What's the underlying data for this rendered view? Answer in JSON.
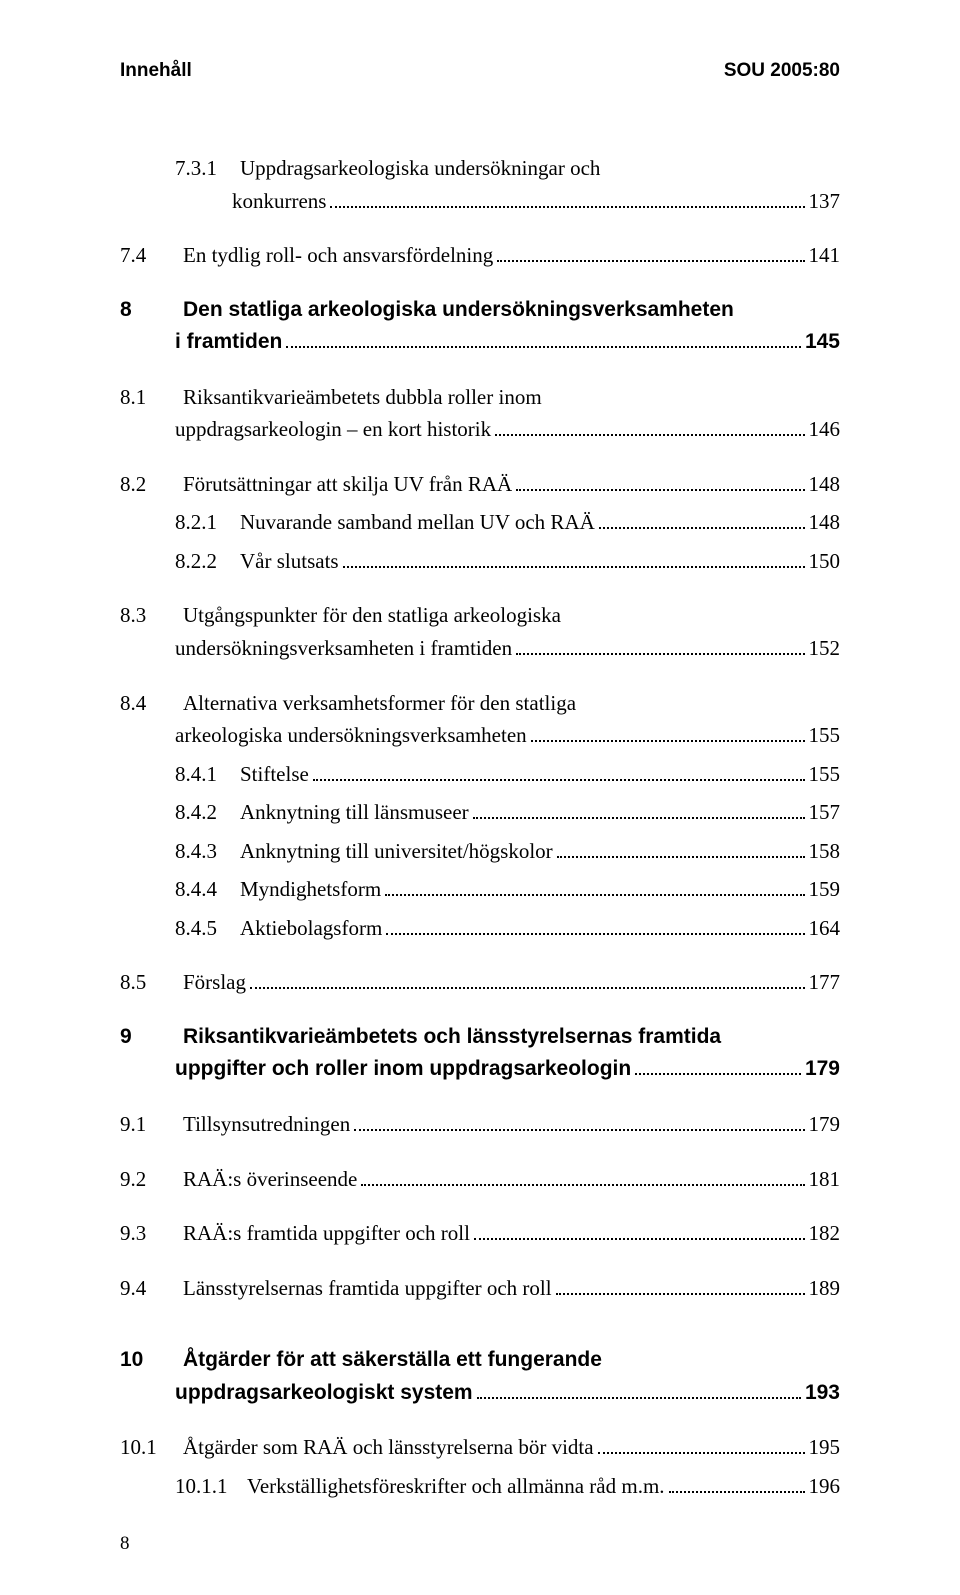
{
  "header": {
    "left": "Innehåll",
    "right": "SOU 2005:80"
  },
  "footer": {
    "page_number": "8"
  },
  "entries": [
    {
      "num": "7.3.1",
      "text_lines": [
        "Uppdragsarkeologiska undersökningar och",
        "konkurrens"
      ],
      "page": "137",
      "level": "sub",
      "bold": false,
      "gap": "none"
    },
    {
      "num": "7.4",
      "text_lines": [
        "En tydlig roll- och ansvarsfördelning"
      ],
      "page": "141",
      "level": "sec",
      "bold": false,
      "gap": "md"
    },
    {
      "num": "8",
      "text_lines": [
        "Den statliga arkeologiska undersökningsverksamheten",
        "i framtiden"
      ],
      "page": "145",
      "level": "ch",
      "bold": true,
      "gap": "md"
    },
    {
      "num": "8.1",
      "text_lines": [
        "Riksantikvarieämbetets dubbla roller inom",
        "uppdragsarkeologin – en kort historik"
      ],
      "page": "146",
      "level": "sec",
      "bold": false,
      "gap": "md"
    },
    {
      "num": "8.2",
      "text_lines": [
        "Förutsättningar att skilja UV från RAÄ"
      ],
      "page": "148",
      "level": "sec",
      "bold": false,
      "gap": "md"
    },
    {
      "num": "8.2.1",
      "text_lines": [
        "Nuvarande samband mellan UV och RAÄ"
      ],
      "page": "148",
      "level": "sub",
      "bold": false,
      "gap": "sm"
    },
    {
      "num": "8.2.2",
      "text_lines": [
        "Vår slutsats"
      ],
      "page": "150",
      "level": "sub",
      "bold": false,
      "gap": "sm"
    },
    {
      "num": "8.3",
      "text_lines": [
        "Utgångspunkter för den statliga arkeologiska",
        "undersökningsverksamheten i framtiden"
      ],
      "page": "152",
      "level": "sec",
      "bold": false,
      "gap": "md"
    },
    {
      "num": "8.4",
      "text_lines": [
        "Alternativa verksamhetsformer för den statliga",
        "arkeologiska undersökningsverksamheten"
      ],
      "page": "155",
      "level": "sec",
      "bold": false,
      "gap": "md"
    },
    {
      "num": "8.4.1",
      "text_lines": [
        "Stiftelse"
      ],
      "page": "155",
      "level": "sub",
      "bold": false,
      "gap": "sm"
    },
    {
      "num": "8.4.2",
      "text_lines": [
        "Anknytning till länsmuseer"
      ],
      "page": "157",
      "level": "sub",
      "bold": false,
      "gap": "sm"
    },
    {
      "num": "8.4.3",
      "text_lines": [
        "Anknytning till universitet/högskolor"
      ],
      "page": "158",
      "level": "sub",
      "bold": false,
      "gap": "sm"
    },
    {
      "num": "8.4.4",
      "text_lines": [
        "Myndighetsform"
      ],
      "page": "159",
      "level": "sub",
      "bold": false,
      "gap": "sm"
    },
    {
      "num": "8.4.5",
      "text_lines": [
        "Aktiebolagsform"
      ],
      "page": "164",
      "level": "sub",
      "bold": false,
      "gap": "sm"
    },
    {
      "num": "8.5",
      "text_lines": [
        "Förslag"
      ],
      "page": "177",
      "level": "sec",
      "bold": false,
      "gap": "md"
    },
    {
      "num": "9",
      "text_lines": [
        "Riksantikvarieämbetets och länsstyrelsernas framtida",
        "uppgifter och roller inom uppdragsarkeologin"
      ],
      "page": "179",
      "level": "ch",
      "bold": true,
      "gap": "md"
    },
    {
      "num": "9.1",
      "text_lines": [
        "Tillsynsutredningen"
      ],
      "page": "179",
      "level": "sec",
      "bold": false,
      "gap": "md"
    },
    {
      "num": "9.2",
      "text_lines": [
        "RAÄ:s överinseende"
      ],
      "page": "181",
      "level": "sec",
      "bold": false,
      "gap": "md"
    },
    {
      "num": "9.3",
      "text_lines": [
        "RAÄ:s framtida uppgifter och roll"
      ],
      "page": "182",
      "level": "sec",
      "bold": false,
      "gap": "md"
    },
    {
      "num": "9.4",
      "text_lines": [
        "Länsstyrelsernas framtida uppgifter och roll"
      ],
      "page": "189",
      "level": "sec",
      "bold": false,
      "gap": "md"
    },
    {
      "num": "10",
      "text_lines": [
        "Åtgärder för att säkerställa ett fungerande",
        "uppdragsarkeologiskt system"
      ],
      "page": "193",
      "level": "ch",
      "bold": true,
      "gap": "lg"
    },
    {
      "num": "10.1",
      "text_lines": [
        "Åtgärder som RAÄ och länsstyrelserna bör vidta"
      ],
      "page": "195",
      "level": "sec",
      "bold": false,
      "gap": "md"
    },
    {
      "num": "10.1.1",
      "text_lines": [
        "Verkställighetsföreskrifter och allmänna råd m.m."
      ],
      "page": "196",
      "level": "subx",
      "bold": false,
      "gap": "sm"
    }
  ]
}
